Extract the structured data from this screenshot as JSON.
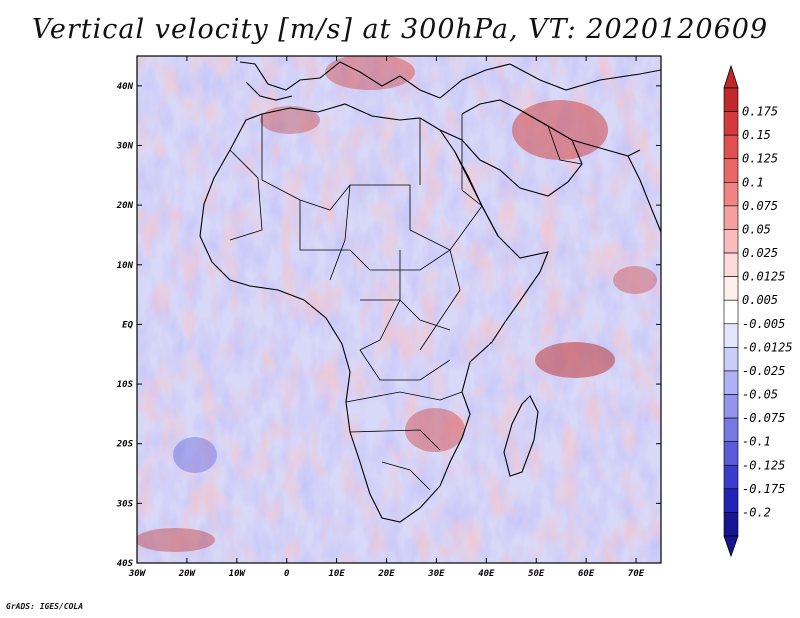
{
  "title": "Vertical velocity [m/s] at 300hPa, VT: 2020120609",
  "footer": "GrADS: IGES/COLA",
  "map": {
    "lat_labels": [
      "40N",
      "30N",
      "20N",
      "10N",
      "EQ",
      "10S",
      "20S",
      "30S",
      "40S"
    ],
    "lon_labels": [
      "30W",
      "20W",
      "10W",
      "0",
      "10E",
      "20E",
      "30E",
      "40E",
      "50E",
      "60E",
      "70E"
    ],
    "lat_range": [
      -40,
      45
    ],
    "lon_range": [
      -30,
      75
    ]
  },
  "colorbar": {
    "labels": [
      "0.175",
      "0.15",
      "0.125",
      "0.1",
      "0.075",
      "0.05",
      "0.025",
      "0.0125",
      "0.005",
      "-0.005",
      "-0.0125",
      "-0.025",
      "-0.05",
      "-0.075",
      "-0.1",
      "-0.125",
      "-0.175",
      "-0.2"
    ],
    "colors": [
      "#c0282c",
      "#d43a3c",
      "#e05050",
      "#e86868",
      "#f08484",
      "#f4a0a0",
      "#f8bcbc",
      "#fcdada",
      "#fff0f0",
      "#ffffff",
      "#e4e4fc",
      "#ccccf8",
      "#b0b0f4",
      "#9494ec",
      "#7878e4",
      "#5c5cd8",
      "#3c3ccc",
      "#2424b4",
      "#161690"
    ]
  }
}
